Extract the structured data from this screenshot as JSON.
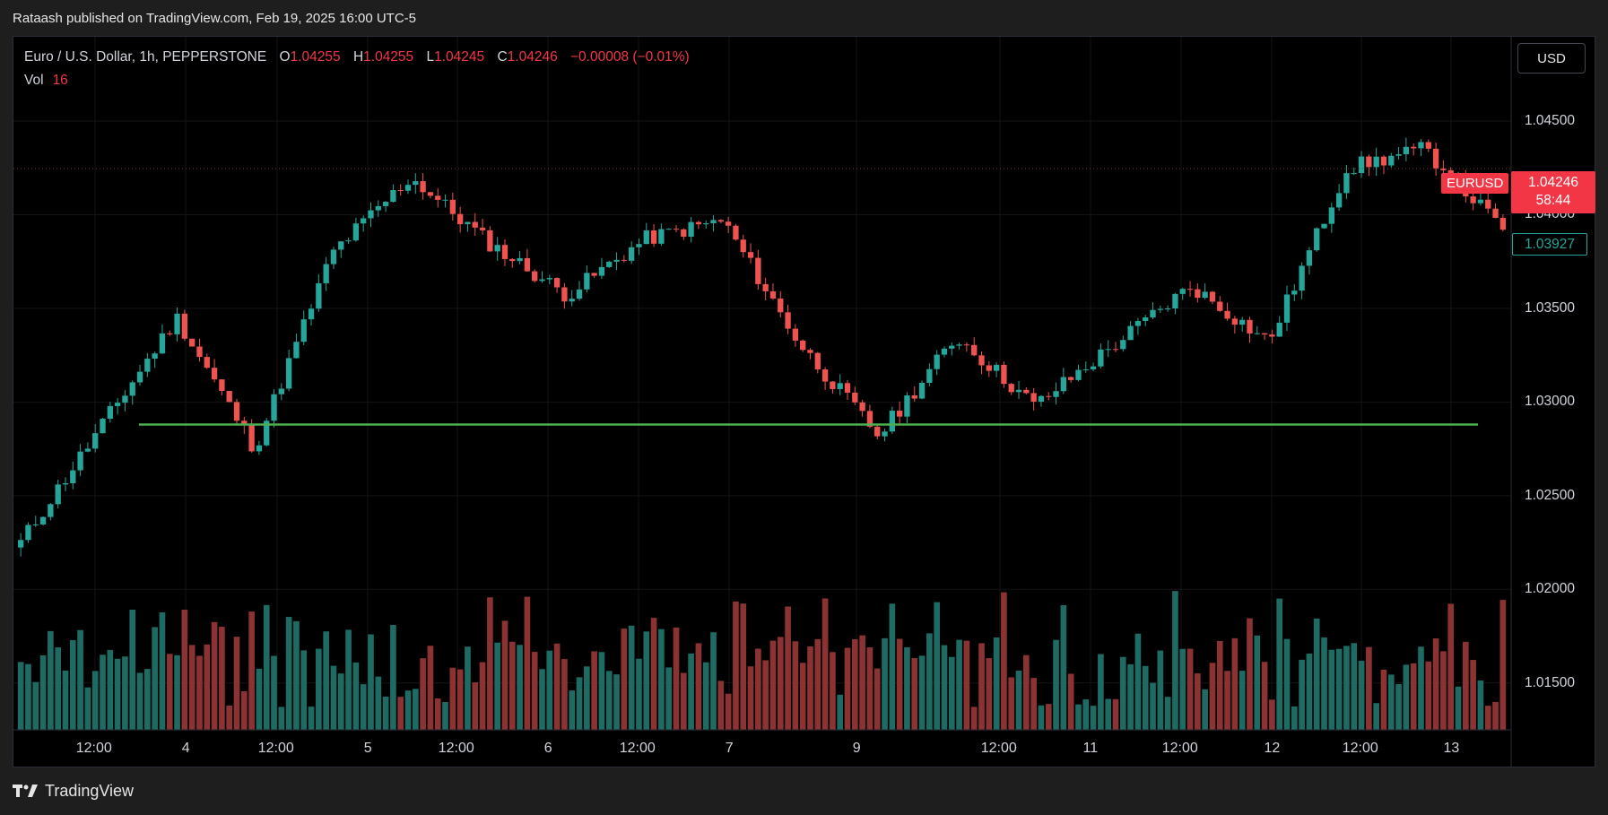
{
  "header": {
    "publisher_text": "Rataash published on TradingView.com, Feb 19, 2025 16:00 UTC-5"
  },
  "legend": {
    "symbol_desc": "Euro / U.S. Dollar, 1h, PEPPERSTONE",
    "o_key": "O",
    "o_val": "1.04255",
    "h_key": "H",
    "h_val": "1.04255",
    "l_key": "L",
    "l_val": "1.04245",
    "c_key": "C",
    "c_val": "1.04246",
    "change": "−0.00008 (−0.01%)",
    "vol_label": "Vol",
    "vol_value": "16"
  },
  "currency_button": "USD",
  "last_price": {
    "symbol": "EURUSD",
    "price": "1.04246",
    "countdown": "58:44"
  },
  "marker_price": "1.03927",
  "footer": {
    "brand": "TradingView"
  },
  "colors": {
    "up": "#26a69a",
    "down": "#ef5350",
    "support_line": "#4caf50",
    "background": "#000000"
  },
  "chart_data": {
    "type": "candlestick",
    "title": "Euro / U.S. Dollar, 1h, PEPPERSTONE",
    "price_ticks": [
      "1.04500",
      "1.04000",
      "1.03500",
      "1.03000",
      "1.02500",
      "1.02000",
      "1.01500"
    ],
    "price_tick_values": [
      1.045,
      1.04,
      1.035,
      1.03,
      1.025,
      1.02,
      1.015
    ],
    "time_ticks": [
      "12:00",
      "4",
      "12:00",
      "5",
      "12:00",
      "6",
      "12:00",
      "7",
      "9",
      "12:00",
      "11",
      "12:00",
      "12",
      "12:00",
      "13"
    ],
    "ylim": [
      1.0125,
      1.0495
    ],
    "support_level": 1.0288,
    "last_close": 1.04246,
    "grid": true,
    "volume_last": 16,
    "key_points": [
      {
        "t": "start",
        "price": 1.0225
      },
      {
        "t": "3 12:00",
        "price": 1.0285
      },
      {
        "t": "3 late",
        "price": 1.0345
      },
      {
        "t": "4 00:00 low",
        "price": 1.0275
      },
      {
        "t": "4 12:00",
        "price": 1.038
      },
      {
        "t": "5 09:00 high",
        "price": 1.042
      },
      {
        "t": "6 00:00",
        "price": 1.0385
      },
      {
        "t": "6 06:00 low",
        "price": 1.0357
      },
      {
        "t": "6 12:00",
        "price": 1.0387
      },
      {
        "t": "7 00:00",
        "price": 1.0397
      },
      {
        "t": "7 08:00",
        "price": 1.033
      },
      {
        "t": "9 00:00 low",
        "price": 1.0282
      },
      {
        "t": "9 12:00",
        "price": 1.0335
      },
      {
        "t": "11 00:00",
        "price": 1.0298
      },
      {
        "t": "11 12:00",
        "price": 1.033
      },
      {
        "t": "12 00:00",
        "price": 1.0362
      },
      {
        "t": "12 08:00 low",
        "price": 1.0332
      },
      {
        "t": "12 12:00 high",
        "price": 1.0425
      },
      {
        "t": "13 00:00",
        "price": 1.0435
      },
      {
        "t": "last",
        "price": 1.0392
      }
    ]
  }
}
